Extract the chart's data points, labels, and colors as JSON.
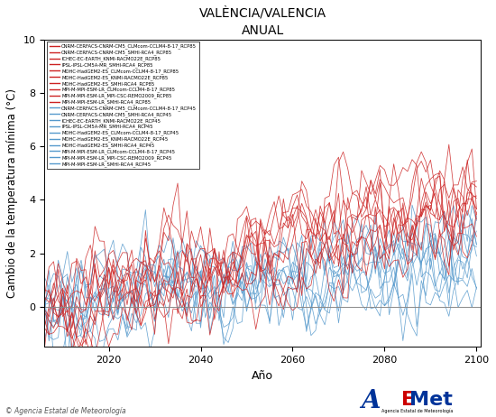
{
  "title": "VALÈNCIA/VALENCIA",
  "subtitle": "ANUAL",
  "ylabel": "Cambio de la temperatura mínima (°C)",
  "xlabel": "Año",
  "xlim": [
    2006,
    2101
  ],
  "ylim": [
    -1.5,
    10
  ],
  "yticks": [
    0,
    2,
    4,
    6,
    8,
    10
  ],
  "xticks": [
    2020,
    2040,
    2060,
    2080,
    2100
  ],
  "rcp85_color": "#CC2222",
  "rcp45_color": "#5599CC",
  "legend_entries_85": [
    "CNRM-CERFACS-CNRM-CM5_CLMcom-CCLM4-8-17_RCP85",
    "CNRM-CERFACS-CNRM-CM5_SMHI-RCA4_RCP85",
    "ICHEC-EC-EARTH_KNMI-RACMO22E_RCP85",
    "IPSL-IPSL-CM5A-MR_SMHI-RCA4_RCP85",
    "MOHC-HadGEM2-ES_CLMcom-CCLM4-8-17_RCP85",
    "MOHC-HadGEM2-ES_KNMI-RACMO22E_RCP85",
    "MOHC-HadGEM2-ES_SMHI-RCA4_RCP85",
    "MPI-M-MPI-ESM-LR_CLMcom-CCLM4-8-17_RCP85",
    "MPI-M-MPI-ESM-LR_MPI-CSC-REMO2009_RCP85",
    "MPI-M-MPI-ESM-LR_SMHI-RCA4_RCP85"
  ],
  "legend_entries_45": [
    "CNRM-CERFACS-CNRM-CM5_CLMcom-CCLM4-8-17_RCP45",
    "CNRM-CERFACS-CNRM-CM5_SMHI-RCA4_RCP45",
    "ICHEC-EC-EARTH_KNMI-RACMO22E_RCP45",
    "IPSL-IPSL-CM5A-MR_SMHI-RCA4_RCP45",
    "MOHC-HadGEM2-ES_CLMcom-CCLM4-8-17_RCP45",
    "MOHC-HadGEM2-ES_KNMI-RACMO22E_RCP45",
    "MOHC-HadGEM2-ES_SMHI-RCA4_RCP45",
    "MPI-M-MPI-ESM-LR_CLMcom-CCLM4-8-17_RCP45",
    "MPI-M-MPI-ESM-LR_MPI-CSC-REMO2009_RCP45",
    "MPI-M-MPI-ESM-LR_SMHI-RCA4_RCP45"
  ],
  "start_year": 2006,
  "end_year": 2100,
  "n_years": 95,
  "rcp85_trends": [
    4.5,
    3.8,
    3.5,
    3.3,
    5.2,
    4.6,
    4.0,
    4.1,
    3.7,
    4.2
  ],
  "rcp45_trends": [
    2.3,
    1.9,
    1.7,
    2.0,
    2.8,
    2.5,
    2.1,
    2.0,
    1.8,
    2.2
  ]
}
